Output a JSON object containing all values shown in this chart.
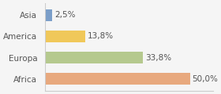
{
  "categories": [
    "Asia",
    "America",
    "Europa",
    "Africa"
  ],
  "values": [
    2.5,
    13.8,
    33.8,
    50.0
  ],
  "labels": [
    "2,5%",
    "13,8%",
    "33,8%",
    "50,0%"
  ],
  "bar_colors": [
    "#7b9ec9",
    "#f0c85a",
    "#b5c98e",
    "#e8a97e"
  ],
  "background_color": "#f5f5f5",
  "xlim": [
    0,
    58
  ],
  "bar_height": 0.55,
  "label_fontsize": 7.5,
  "tick_fontsize": 7.5
}
